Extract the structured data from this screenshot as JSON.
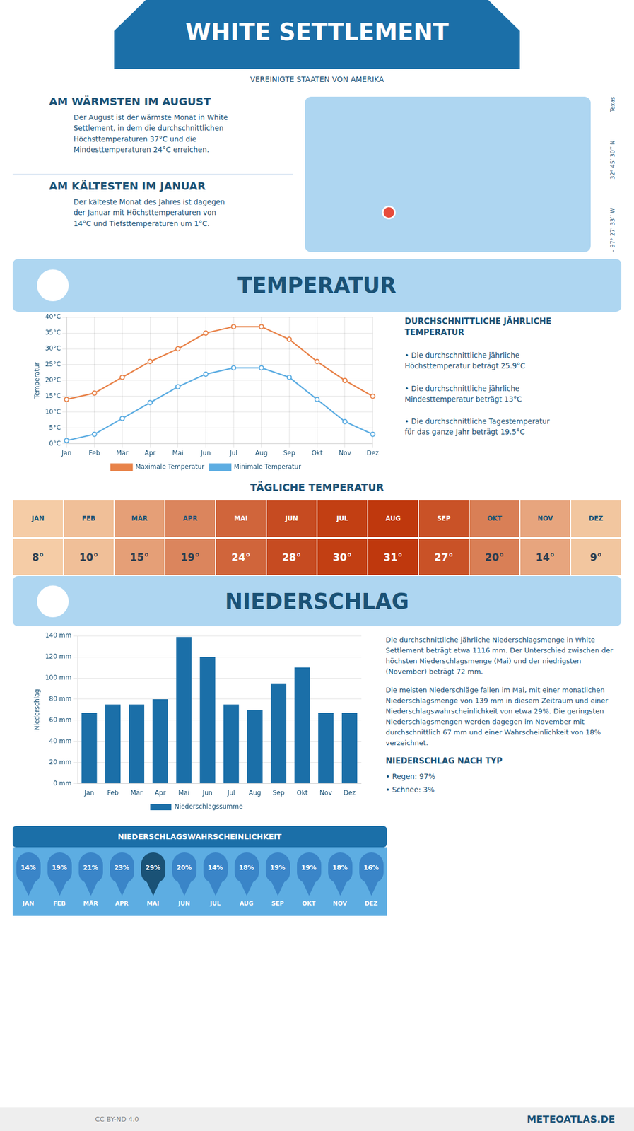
{
  "title": "WHITE SETTLEMENT",
  "subtitle": "VEREINIGTE STAATEN VON AMERIKA",
  "annotations": [
    "AM WÄRMSTEN IM AUGUST",
    "Der August ist der wärmste Monat in White\nSettlement, in dem die durchschnittlichen\nHöchsttemperaturen 37°C und die\nMindesttemperaturen 24°C erreichen.",
    "AM KÄLTESTEN IM JANUAR",
    "Der kälteste Monat des Jahres ist dagegen\nder Januar mit Höchsttemperaturen von\n14°C und Tiefsttemperaturen um 1°C.",
    "Texas",
    "32° 45’ 30’’ N",
    "– 97° 27’ 33’’ W",
    "CC BY-ND 4.0",
    "METEOATLAS.DE"
  ],
  "chart_data": [
    {
      "type": "line",
      "title": "TEMPERATUR",
      "y_label": "Temperatur",
      "categories": [
        "Jan",
        "Feb",
        "Mär",
        "Apr",
        "Mai",
        "Jun",
        "Jul",
        "Aug",
        "Sep",
        "Okt",
        "Nov",
        "Dez"
      ],
      "series": [
        {
          "name": "Maximale Temperatur",
          "color": "#e8834a",
          "values": [
            14,
            16,
            21,
            26,
            30,
            35,
            37,
            37,
            33,
            26,
            20,
            15
          ]
        },
        {
          "name": "Minimale Temperatur",
          "color": "#5dade2",
          "values": [
            1,
            3,
            8,
            13,
            18,
            22,
            24,
            24,
            21,
            14,
            7,
            3
          ]
        }
      ],
      "marker": "circle",
      "line_style": "solid",
      "ylim": [
        0,
        40
      ],
      "yticks": [
        {
          "value": 0,
          "label": "0°C"
        },
        {
          "value": 5,
          "label": "5°C"
        },
        {
          "value": 10,
          "label": "10°C"
        },
        {
          "value": 15,
          "label": "15°C"
        },
        {
          "value": 20,
          "label": "20°C"
        },
        {
          "value": 25,
          "label": "25°C"
        },
        {
          "value": 30,
          "label": "30°C"
        },
        {
          "value": 35,
          "label": "35°C"
        },
        {
          "value": 40,
          "label": "40°C"
        }
      ],
      "grid": true,
      "legend": "bottom",
      "annotations": [
        "DURCHSCHNITTLICHE JÄHRLICHE\nTEMPERATUR",
        "• Die durchschnittliche jährliche\nHöchsttemperatur beträgt 25.9°C",
        "• Die durchschnittliche jährliche\nMindesttemperatur beträgt 13°C",
        "• Die durchschnittliche Tagestemperatur\nfür das ganze Jahr beträgt 19.5°C"
      ]
    },
    {
      "type": "table",
      "title": "TÄGLICHE TEMPERATUR",
      "categories": [
        "JAN",
        "FEB",
        "MÄR",
        "APR",
        "MAI",
        "JUN",
        "JUL",
        "AUG",
        "SEP",
        "OKT",
        "NOV",
        "DEZ"
      ],
      "values": [
        8,
        10,
        15,
        19,
        24,
        28,
        30,
        31,
        27,
        20,
        14,
        9
      ],
      "value_labels": [
        "8°",
        "10°",
        "15°",
        "19°",
        "24°",
        "28°",
        "30°",
        "31°",
        "27°",
        "20°",
        "14°",
        "9°"
      ],
      "data_labels": true
    },
    {
      "type": "bar",
      "title": "NIEDERSCHLAG",
      "y_label": "Niederschlag",
      "categories": [
        "Jan",
        "Feb",
        "Mär",
        "Apr",
        "Mai",
        "Jun",
        "Jul",
        "Aug",
        "Sep",
        "Okt",
        "Nov",
        "Dez"
      ],
      "series": [
        {
          "name": "Niederschlagssumme",
          "color": "#1b6fa8",
          "values": [
            67,
            75,
            75,
            80,
            139,
            120,
            75,
            70,
            95,
            110,
            67,
            67
          ]
        }
      ],
      "ylim": [
        0,
        140
      ],
      "yticks": [
        {
          "value": 0,
          "label": "0 mm"
        },
        {
          "value": 20,
          "label": "20 mm"
        },
        {
          "value": 40,
          "label": "40 mm"
        },
        {
          "value": 60,
          "label": "60 mm"
        },
        {
          "value": 80,
          "label": "80 mm"
        },
        {
          "value": 100,
          "label": "100 mm"
        },
        {
          "value": 120,
          "label": "120 mm"
        },
        {
          "value": 140,
          "label": "140 mm"
        }
      ],
      "grid": "y",
      "legend": "bottom",
      "annotations": [
        "Die durchschnittliche jährliche Niederschlagsmenge in White Settlement beträgt etwa 1116 mm. Der Unterschied zwischen der höchsten Niederschlagsmenge (Mai) und der niedrigsten (November) beträgt 72 mm.",
        "Die meisten Niederschläge fallen im Mai, mit einer monatlichen Niederschlagsmenge von 139 mm in diesem Zeitraum und einer Niederschlagswahrscheinlichkeit von etwa 29%. Die geringsten Niederschlagsmengen werden dagegen im November mit durchschnittlich 67 mm und einer Wahrscheinlichkeit von 18% verzeichnet.",
        "NIEDERSCHLAG NACH TYP",
        "• Regen: 97%",
        "• Schnee: 3%"
      ]
    },
    {
      "type": "table",
      "title": "NIEDERSCHLAGSWAHRSCHEINLICHKEIT",
      "categories": [
        "JAN",
        "FEB",
        "MÄR",
        "APR",
        "MAI",
        "JUN",
        "JUL",
        "AUG",
        "SEP",
        "OKT",
        "NOV",
        "DEZ"
      ],
      "values": [
        14,
        19,
        21,
        23,
        29,
        20,
        14,
        18,
        19,
        19,
        18,
        16
      ],
      "value_labels": [
        "14%",
        "19%",
        "21%",
        "23%",
        "29%",
        "20%",
        "14%",
        "18%",
        "19%",
        "19%",
        "18%",
        "16%"
      ],
      "data_labels": true
    }
  ]
}
